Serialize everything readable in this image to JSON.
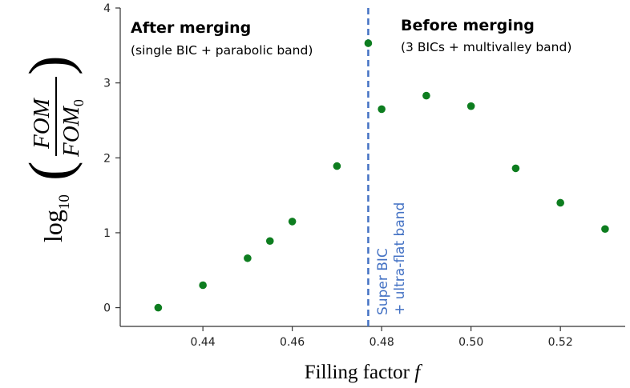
{
  "chart_data": {
    "type": "scatter",
    "x": [
      0.43,
      0.44,
      0.45,
      0.455,
      0.46,
      0.47,
      0.477,
      0.48,
      0.49,
      0.5,
      0.51,
      0.52,
      0.53
    ],
    "y": [
      0.0,
      0.3,
      0.66,
      0.89,
      1.15,
      1.89,
      3.53,
      2.65,
      2.83,
      2.69,
      1.86,
      1.4,
      1.05
    ],
    "xlim": [
      0.4215,
      0.5345
    ],
    "ylim": [
      -0.25,
      4.0
    ],
    "xticks": [
      0.44,
      0.46,
      0.48,
      0.5,
      0.52
    ],
    "xtick_labels": [
      "0.44",
      "0.46",
      "0.48",
      "0.50",
      "0.52"
    ],
    "yticks": [
      0,
      1,
      2,
      3,
      4
    ],
    "ytick_labels": [
      "0",
      "1",
      "2",
      "3",
      "4"
    ],
    "xlabel_text": "Filling factor ",
    "xlabel_var": "f",
    "ylabel": {
      "log": "log",
      "log_sub": "10",
      "numerator": "FOM",
      "denominator": "FOM",
      "denominator_sub": "0"
    },
    "grid": false,
    "marker_color": "#0d7d1f",
    "vline": {
      "x": 0.477,
      "color": "#4472c4",
      "style": "dashed"
    },
    "annotations": {
      "after_title": "After merging",
      "after_sub": "(single BIC + parabolic band)",
      "before_title": "Before merging",
      "before_sub": "(3 BICs + multivalley band)",
      "super_line1": "Super BIC",
      "super_line2": "+ ultra-flat band"
    }
  }
}
